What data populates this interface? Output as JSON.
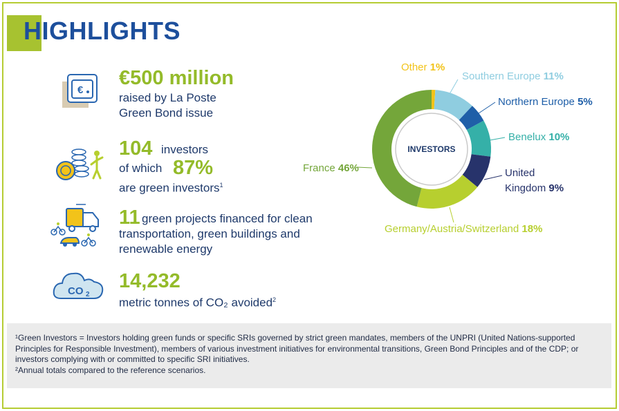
{
  "header": {
    "title": "HIGHLIGHTS"
  },
  "highlights": {
    "bond": {
      "value": "€500 million",
      "line1": "raised by La Poste",
      "line2": "Green Bond issue"
    },
    "investors": {
      "value": "104",
      "suffix": "investors",
      "line2_pre": "of which",
      "value2": "87%",
      "line3": "are green investors",
      "sup": "1"
    },
    "projects": {
      "value": "11",
      "line1": "green projects financed for clean",
      "line2": "transportation, green buildings and",
      "line3": "renewable energy"
    },
    "co2": {
      "value": "14,232",
      "line1": "metric tonnes of CO₂ avoided",
      "sup": "2"
    }
  },
  "footnotes": {
    "note1": "¹Green Investors = Investors holding green funds or specific SRIs governed by strict green mandates, members of the UNPRI (United Nations-supported Principles for Responsible Investment), members of various investment initiatives for environmental transitions, Green Bond Principles and of the CDP; or investors complying with or committed to specific SRI initiatives.",
    "note2": "²Annual totals compared to the reference scenarios."
  },
  "chart_data": {
    "type": "pie",
    "center_label": "INVESTORS",
    "categories": [
      "Other",
      "Southern Europe",
      "Northern Europe",
      "Benelux",
      "United Kingdom",
      "Germany/Austria/Switzerland",
      "France"
    ],
    "values": [
      1,
      11,
      5,
      10,
      9,
      18,
      46
    ],
    "labels_pct": [
      "1%",
      "11%",
      "5%",
      "10%",
      "9%",
      "18%",
      "46%"
    ],
    "colors": [
      "#f2c31a",
      "#8fcde0",
      "#1f5fa8",
      "#35b0a8",
      "#27336b",
      "#b7cf2f",
      "#74a63a"
    ]
  },
  "colors": {
    "accent": "#94bb2a",
    "title": "#1d4f9c",
    "text": "#1f3a6b"
  }
}
